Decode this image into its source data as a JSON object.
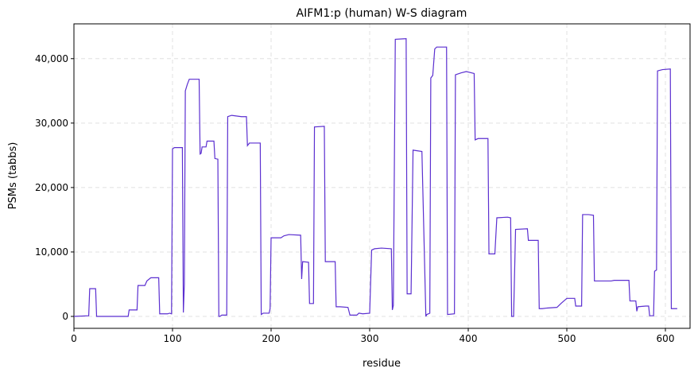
{
  "chart_data": {
    "type": "line",
    "title": "AIFM1:p (human) W-S diagram",
    "x_label": "residue",
    "y_label": "PSMs (tabbs)",
    "grid": true,
    "xlim": [
      0,
      625
    ],
    "ylim": [
      -1850,
      45400
    ],
    "xticks": [
      0,
      100,
      200,
      300,
      400,
      500,
      600
    ],
    "yticks": [
      0,
      {
        "value": 10000,
        "label": "10,000"
      },
      {
        "value": 20000,
        "label": "20,000"
      },
      {
        "value": 30000,
        "label": "30,000"
      },
      {
        "value": 40000,
        "label": "40,000"
      }
    ],
    "x": [
      0,
      15,
      16,
      22,
      23,
      55,
      56,
      64,
      65,
      72,
      74,
      78,
      86,
      87,
      95,
      97,
      99,
      100,
      102,
      110,
      111,
      112,
      113,
      115,
      117,
      127,
      128,
      129,
      130,
      134,
      135,
      142,
      143,
      146,
      147,
      148,
      150,
      155,
      156,
      160,
      170,
      175,
      176,
      178,
      189,
      190,
      192,
      198,
      199,
      200,
      210,
      213,
      218,
      230,
      231,
      232,
      238,
      239,
      243,
      244,
      254,
      255,
      265,
      266,
      270,
      278,
      280,
      287,
      289,
      293,
      300,
      302,
      305,
      312,
      322,
      323,
      324,
      326,
      337,
      338,
      342,
      344,
      353,
      357,
      358,
      361,
      362,
      364,
      366,
      368,
      378,
      379,
      386,
      387,
      393,
      398,
      406,
      407,
      410,
      420,
      421,
      427,
      429,
      440,
      443,
      444,
      446,
      448,
      460,
      461,
      471,
      472,
      475,
      480,
      490,
      494,
      500,
      508,
      509,
      515,
      516,
      522,
      527,
      528,
      540,
      545,
      548,
      563,
      564,
      570,
      571,
      572,
      580,
      583,
      584,
      588,
      589,
      591,
      592,
      597,
      605,
      606,
      612
    ],
    "series": [
      {
        "name": "PSMs",
        "color": "#5b2fd0",
        "values": [
          0,
          100,
          4300,
          4300,
          0,
          0,
          1000,
          1000,
          4800,
          4800,
          5500,
          6000,
          6000,
          400,
          400,
          500,
          400,
          26000,
          26200,
          26200,
          600,
          5000,
          35000,
          36000,
          36800,
          36800,
          25200,
          25300,
          26300,
          26300,
          27200,
          27200,
          24500,
          24400,
          0,
          0,
          200,
          200,
          31000,
          31200,
          31000,
          31000,
          26500,
          26900,
          26900,
          300,
          500,
          500,
          1200,
          12200,
          12200,
          12500,
          12700,
          12600,
          5800,
          8500,
          8400,
          2000,
          2000,
          29400,
          29500,
          8500,
          8500,
          1500,
          1500,
          1400,
          200,
          200,
          500,
          400,
          500,
          10300,
          10500,
          10600,
          10500,
          1000,
          1700,
          43000,
          43100,
          3500,
          3500,
          25800,
          25600,
          0,
          300,
          500,
          37000,
          37400,
          41500,
          41800,
          41800,
          300,
          400,
          37500,
          37800,
          38000,
          37700,
          27400,
          27600,
          27600,
          9700,
          9700,
          15300,
          15400,
          15300,
          0,
          0,
          13500,
          13600,
          11800,
          11800,
          1200,
          1200,
          1300,
          1400,
          2000,
          2800,
          2800,
          1600,
          1600,
          15800,
          15800,
          15700,
          5500,
          5500,
          5500,
          5600,
          5600,
          2400,
          2400,
          800,
          1500,
          1600,
          1600,
          100,
          100,
          7000,
          7200,
          38100,
          38300,
          38400,
          1200,
          1200
        ]
      }
    ]
  }
}
